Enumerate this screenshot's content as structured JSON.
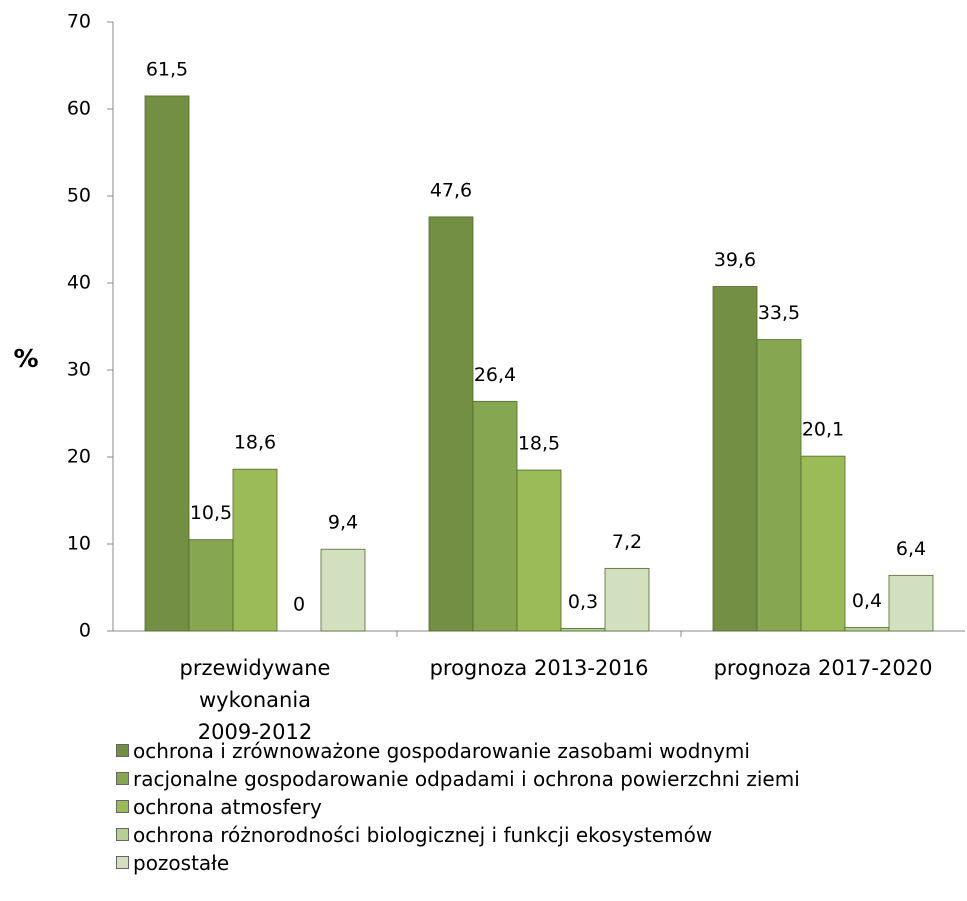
{
  "chart_data": {
    "type": "bar",
    "ylabel": "%",
    "categories": [
      "przewidywane\nwykonania\n2009-2012",
      "prognoza 2013-2016",
      "prognoza 2017-2020"
    ],
    "series": [
      {
        "name": "ochrona i zrównoważone gospodarowanie zasobami wodnymi",
        "color": "#728f43",
        "values": [
          61.5,
          47.6,
          39.6
        ],
        "value_labels": [
          "61,5",
          "47,6",
          "39,6"
        ]
      },
      {
        "name": "racjonalne gospodarowanie odpadami i ochrona powierzchni ziemi",
        "color": "#87a651",
        "values": [
          10.5,
          26.4,
          33.5
        ],
        "value_labels": [
          "10,5",
          "26,4",
          "33,5"
        ]
      },
      {
        "name": "ochrona atmosfery",
        "color": "#9bbb59",
        "values": [
          18.6,
          18.5,
          20.1
        ],
        "value_labels": [
          "18,6",
          "18,5",
          "20,1"
        ]
      },
      {
        "name": "ochrona różnorodności biologicznej i funkcji ekosystemów",
        "color": "#b6cf94",
        "values": [
          0,
          0.3,
          0.4
        ],
        "value_labels": [
          "0",
          "0,3",
          "0,4"
        ]
      },
      {
        "name": "pozostałe",
        "color": "#d3e0bf",
        "values": [
          9.4,
          7.2,
          6.4
        ],
        "value_labels": [
          "9,4",
          "7,2",
          "6,4"
        ]
      }
    ],
    "ylim": [
      0,
      70
    ],
    "yticks": [
      0,
      10,
      20,
      30,
      40,
      50,
      60,
      70
    ],
    "grid": false,
    "legend": "bottom"
  }
}
